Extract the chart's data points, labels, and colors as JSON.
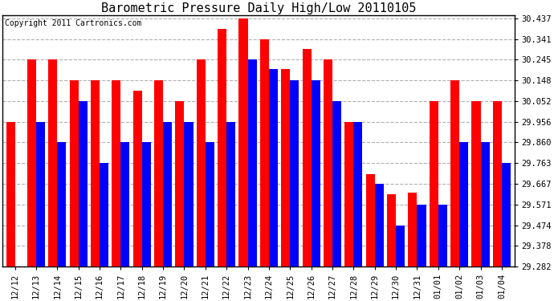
{
  "title": "Barometric Pressure Daily High/Low 20110105",
  "copyright": "Copyright 2011 Cartronics.com",
  "labels": [
    "12/12",
    "12/13",
    "12/14",
    "12/15",
    "12/16",
    "12/17",
    "12/18",
    "12/19",
    "12/20",
    "12/21",
    "12/22",
    "12/23",
    "12/24",
    "12/25",
    "12/26",
    "12/27",
    "12/28",
    "12/29",
    "12/30",
    "12/31",
    "01/01",
    "01/02",
    "01/03",
    "01/04"
  ],
  "high_values": [
    29.956,
    30.245,
    30.245,
    30.148,
    30.148,
    30.148,
    30.1,
    30.148,
    30.052,
    30.245,
    30.39,
    30.437,
    30.341,
    30.2,
    30.295,
    30.245,
    29.956,
    29.71,
    29.62,
    29.625,
    30.052,
    30.148,
    30.052,
    30.052
  ],
  "low_values": [
    29.282,
    29.956,
    29.86,
    30.052,
    29.763,
    29.86,
    29.86,
    29.956,
    29.956,
    29.86,
    29.956,
    30.245,
    30.2,
    30.148,
    30.148,
    30.052,
    29.956,
    29.667,
    29.474,
    29.571,
    29.571,
    29.86,
    29.86,
    29.763
  ],
  "high_color": "#ff0000",
  "low_color": "#0000ff",
  "background_color": "#ffffff",
  "grid_color": "#b0b0b0",
  "ytick_labels": [
    "29.282",
    "29.378",
    "29.474",
    "29.571",
    "29.667",
    "29.763",
    "29.860",
    "29.956",
    "30.052",
    "30.148",
    "30.245",
    "30.341",
    "30.437"
  ],
  "ymin": 29.282,
  "ymax": 30.437,
  "bar_width": 0.42,
  "title_fontsize": 11,
  "tick_fontsize": 7.5,
  "copyright_fontsize": 7
}
